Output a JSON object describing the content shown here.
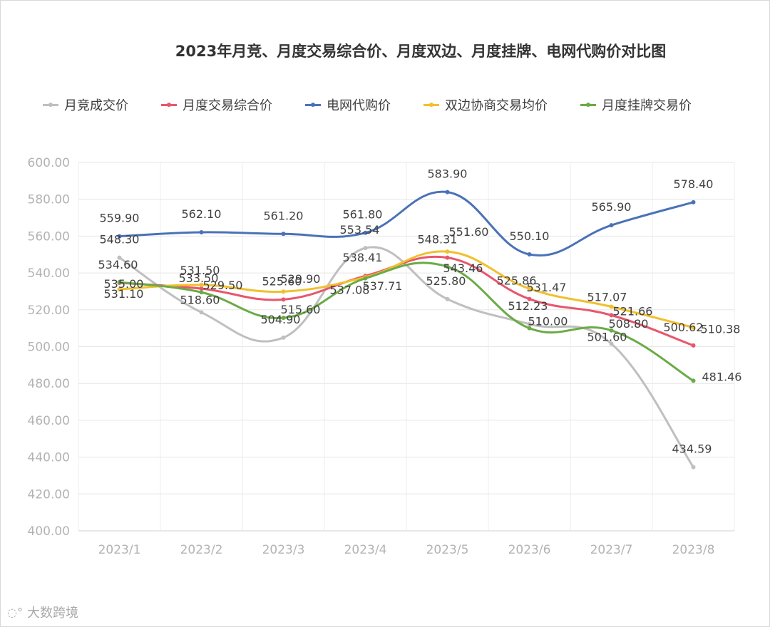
{
  "chart_data": {
    "type": "line",
    "title": "2023年月竞、月度交易综合价、月度双边、月度挂牌、电网代购价对比图",
    "xlabel": "",
    "ylabel": "",
    "ylim": [
      400,
      600
    ],
    "ytick_step": 20,
    "y_ticks": [
      "400.00",
      "420.00",
      "440.00",
      "460.00",
      "480.00",
      "500.00",
      "520.00",
      "540.00",
      "560.00",
      "580.00",
      "600.00"
    ],
    "categories": [
      "2023/1",
      "2023/2",
      "2023/3",
      "2023/4",
      "2023/5",
      "2023/6",
      "2023/7",
      "2023/8"
    ],
    "legend_position": "top",
    "series": [
      {
        "name": "月竞成交价",
        "color": "#bfbfbf",
        "values": [
          548.3,
          518.6,
          504.9,
          553.54,
          525.8,
          512.23,
          501.6,
          434.59
        ],
        "labels": [
          "548.30",
          "518.60",
          "504.90",
          "553.54",
          "525.80",
          "512.23",
          "501.60",
          "434.59"
        ]
      },
      {
        "name": "月度交易综合价",
        "color": "#e8566c",
        "values": [
          534.6,
          531.5,
          525.6,
          538.41,
          548.31,
          525.86,
          517.07,
          500.62
        ],
        "labels": [
          "534.60",
          "531.50",
          "525.60",
          "538.41",
          "548.31",
          "525.86",
          "517.07",
          "500.62"
        ]
      },
      {
        "name": "电网代购价",
        "color": "#4a72b8",
        "values": [
          559.9,
          562.1,
          561.2,
          561.8,
          583.9,
          550.1,
          565.9,
          578.4
        ],
        "labels": [
          "559.90",
          "562.10",
          "561.20",
          "561.80",
          "583.90",
          "550.10",
          "565.90",
          "578.40"
        ]
      },
      {
        "name": "双边协商交易均价",
        "color": "#f0c02e",
        "values": [
          531.1,
          533.5,
          529.9,
          537.71,
          551.6,
          531.47,
          521.66,
          510.38
        ],
        "labels": [
          "531.10",
          "533.50",
          "529.90",
          "537.71",
          "551.60",
          "531.47",
          "521.66",
          "510.38"
        ]
      },
      {
        "name": "月度挂牌交易价",
        "color": "#6aab45",
        "values": [
          535.0,
          529.5,
          515.6,
          537.08,
          543.46,
          510.0,
          508.8,
          481.46
        ],
        "labels": [
          "535.00",
          "529.50",
          "515.60",
          "537.08",
          "543.46",
          "510.00",
          "508.80",
          "481.46"
        ]
      }
    ]
  },
  "watermark": {
    "text": "大数跨境"
  }
}
